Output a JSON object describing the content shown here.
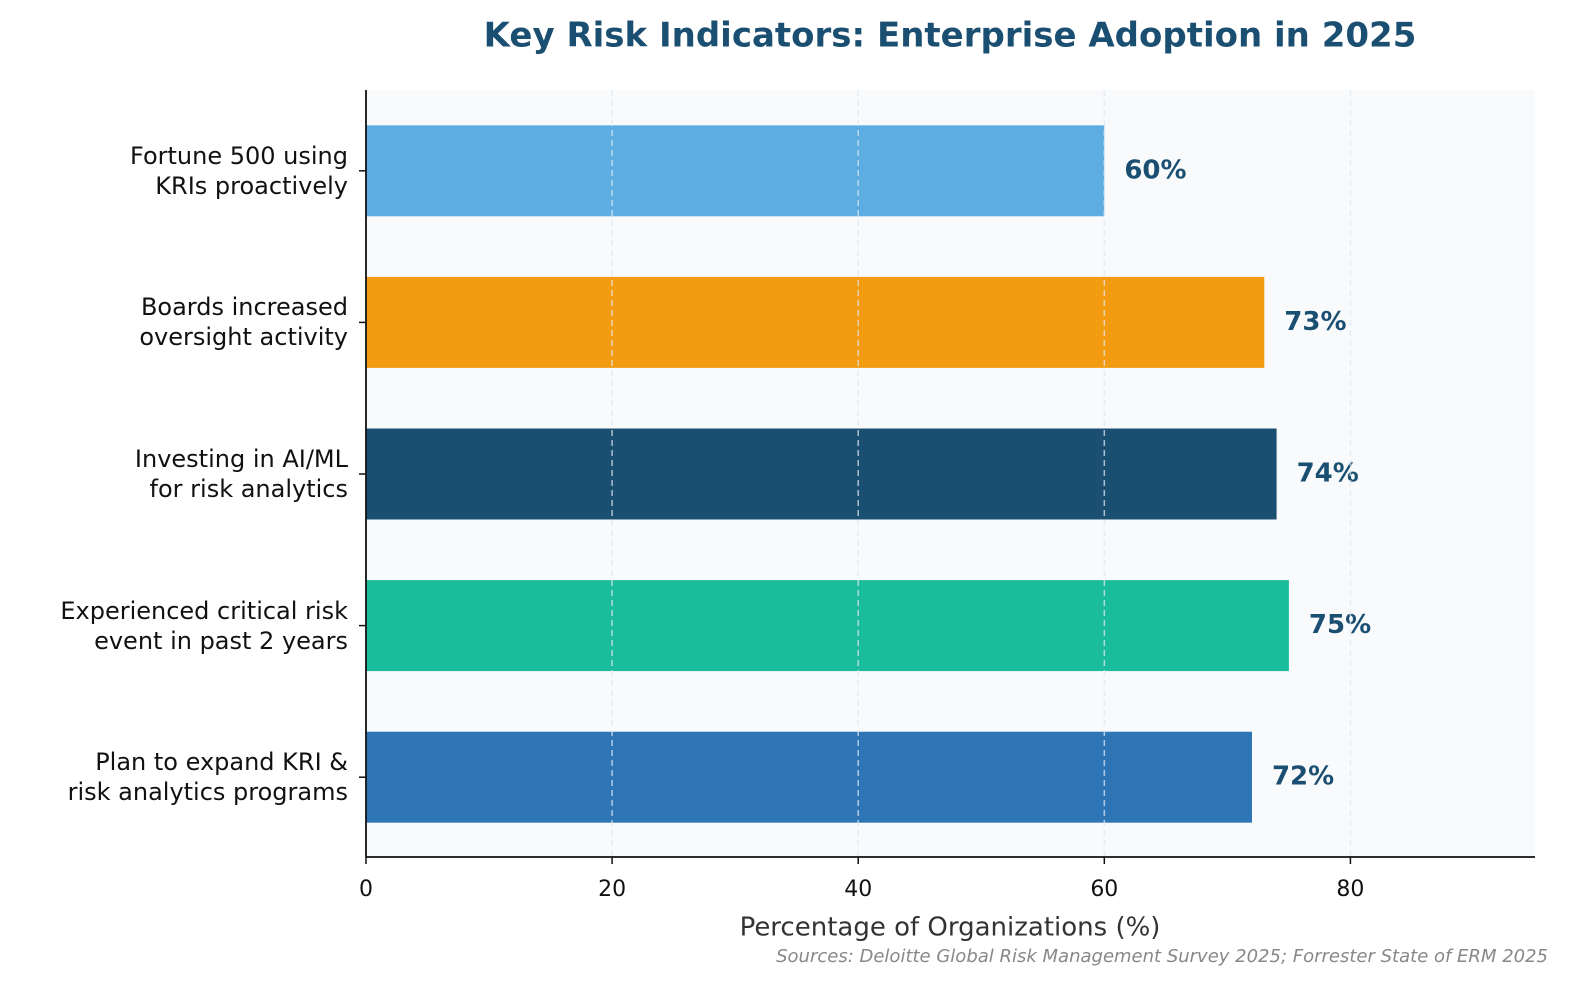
{
  "chart_data": {
    "type": "bar",
    "orientation": "horizontal",
    "title": "Key Risk Indicators: Enterprise Adoption in 2025",
    "xlabel": "Percentage of Organizations (%)",
    "source": "Sources: Deloitte Global Risk Management Survey 2025; Forrester State of ERM 2025",
    "categories": [
      "Fortune 500 using\nKRIs proactively",
      "Boards increased\noversight activity",
      "Investing in AI/ML\nfor risk analytics",
      "Experienced critical risk\nevent in past 2 years",
      "Plan to expand KRI &\nrisk analytics programs"
    ],
    "values": [
      60,
      73,
      74,
      75,
      72
    ],
    "value_labels": [
      "60%",
      "73%",
      "74%",
      "75%",
      "72%"
    ],
    "colors": [
      "#5dade2",
      "#f39c12",
      "#1b4f72",
      "#1abc9c",
      "#2e75b6"
    ],
    "xlim": [
      0,
      95
    ],
    "xticks": [
      0,
      20,
      40,
      60,
      80
    ],
    "grid": true
  }
}
